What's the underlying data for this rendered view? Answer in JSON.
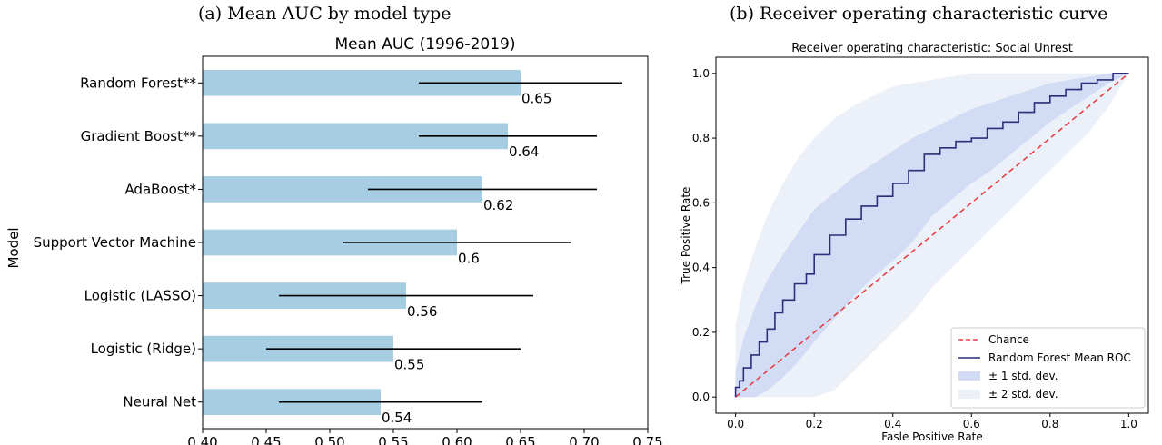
{
  "chart_data": [
    {
      "caption": "(a) Mean AUC by model type",
      "type": "bar",
      "orientation": "horizontal",
      "title": "Mean AUC (1996-2019)",
      "ylabel": "Model",
      "xlabel": "",
      "xlim": [
        0.4,
        0.75
      ],
      "xticks": [
        "0.40",
        "0.45",
        "0.50",
        "0.55",
        "0.60",
        "0.65",
        "0.70",
        "0.75"
      ],
      "grid": false,
      "bar_color": "#a6cde2",
      "errorbar_color": "#000000",
      "categories": [
        "Random Forest**",
        "Gradient Boost**",
        "AdaBoost*",
        "Support Vector Machine",
        "Logistic (LASSO)",
        "Logistic (Ridge)",
        "Neural Net"
      ],
      "values": [
        0.65,
        0.64,
        0.62,
        0.6,
        0.56,
        0.55,
        0.54
      ],
      "value_labels": [
        "0.65",
        "0.64",
        "0.62",
        "0.6",
        "0.56",
        "0.55",
        "0.54"
      ],
      "error_low": [
        0.57,
        0.57,
        0.53,
        0.51,
        0.46,
        0.45,
        0.46
      ],
      "error_high": [
        0.73,
        0.71,
        0.71,
        0.69,
        0.66,
        0.65,
        0.62
      ]
    },
    {
      "caption": "(b) Receiver operating characteristic curve",
      "type": "line",
      "title": "Receiver operating characteristic: Social Unrest",
      "xlabel": "Fasle Positive Rate",
      "ylabel": "True Positive Rate",
      "xlim": [
        -0.05,
        1.05
      ],
      "ylim": [
        -0.05,
        1.05
      ],
      "xticks": [
        "0.0",
        "0.2",
        "0.4",
        "0.6",
        "0.8",
        "1.0"
      ],
      "yticks": [
        "0.0",
        "0.2",
        "0.4",
        "0.6",
        "0.8",
        "1.0"
      ],
      "grid": false,
      "legend_position": "bottom-right",
      "legend": [
        {
          "label": "Chance",
          "kind": "dashed-line",
          "color": "#e8383d"
        },
        {
          "label": "Random Forest Mean ROC",
          "kind": "line",
          "color": "#2e2e7a"
        },
        {
          "label": "± 1 std. dev.",
          "kind": "patch",
          "color": "#d2dcf5"
        },
        {
          "label": "± 2 std. dev.",
          "kind": "patch",
          "color": "#ecf0f8"
        }
      ],
      "chance": {
        "x": [
          0,
          1
        ],
        "y": [
          0,
          1
        ]
      },
      "mean_roc": {
        "x": [
          0.0,
          0.01,
          0.02,
          0.04,
          0.06,
          0.08,
          0.1,
          0.12,
          0.15,
          0.18,
          0.2,
          0.24,
          0.28,
          0.32,
          0.36,
          0.4,
          0.44,
          0.48,
          0.52,
          0.56,
          0.6,
          0.64,
          0.68,
          0.72,
          0.76,
          0.8,
          0.84,
          0.88,
          0.92,
          0.96,
          1.0
        ],
        "y": [
          0.0,
          0.03,
          0.05,
          0.09,
          0.13,
          0.17,
          0.21,
          0.26,
          0.3,
          0.35,
          0.38,
          0.44,
          0.5,
          0.55,
          0.59,
          0.62,
          0.66,
          0.7,
          0.75,
          0.77,
          0.79,
          0.8,
          0.83,
          0.85,
          0.88,
          0.91,
          0.93,
          0.95,
          0.97,
          0.98,
          1.0
        ]
      },
      "band_1sd": {
        "x": [
          0.0,
          0.02,
          0.05,
          0.08,
          0.12,
          0.16,
          0.2,
          0.25,
          0.3,
          0.35,
          0.4,
          0.45,
          0.5,
          0.55,
          0.6,
          0.65,
          0.7,
          0.75,
          0.8,
          0.85,
          0.9,
          0.95,
          1.0
        ],
        "upper": [
          0.08,
          0.18,
          0.28,
          0.36,
          0.44,
          0.51,
          0.58,
          0.63,
          0.68,
          0.72,
          0.76,
          0.8,
          0.83,
          0.86,
          0.89,
          0.91,
          0.93,
          0.95,
          0.97,
          0.98,
          0.99,
          1.0,
          1.0
        ],
        "lower": [
          0.0,
          0.0,
          0.0,
          0.02,
          0.06,
          0.11,
          0.17,
          0.24,
          0.31,
          0.37,
          0.42,
          0.48,
          0.56,
          0.61,
          0.66,
          0.7,
          0.75,
          0.8,
          0.85,
          0.89,
          0.93,
          0.97,
          1.0
        ]
      },
      "band_2sd": {
        "x": [
          0.0,
          0.02,
          0.05,
          0.08,
          0.12,
          0.16,
          0.2,
          0.25,
          0.3,
          0.35,
          0.4,
          0.45,
          0.5,
          0.55,
          0.6,
          0.65,
          0.7,
          0.75,
          0.8,
          0.85,
          0.9,
          0.95,
          1.0
        ],
        "upper": [
          0.22,
          0.35,
          0.46,
          0.56,
          0.66,
          0.74,
          0.8,
          0.86,
          0.9,
          0.93,
          0.96,
          0.97,
          0.98,
          0.99,
          1.0,
          1.0,
          1.0,
          1.0,
          1.0,
          1.0,
          1.0,
          1.0,
          1.0
        ],
        "lower": [
          0.0,
          0.0,
          0.0,
          0.0,
          0.0,
          0.0,
          0.0,
          0.02,
          0.08,
          0.14,
          0.2,
          0.26,
          0.34,
          0.4,
          0.46,
          0.52,
          0.58,
          0.64,
          0.7,
          0.76,
          0.82,
          0.9,
          1.0
        ]
      }
    }
  ]
}
